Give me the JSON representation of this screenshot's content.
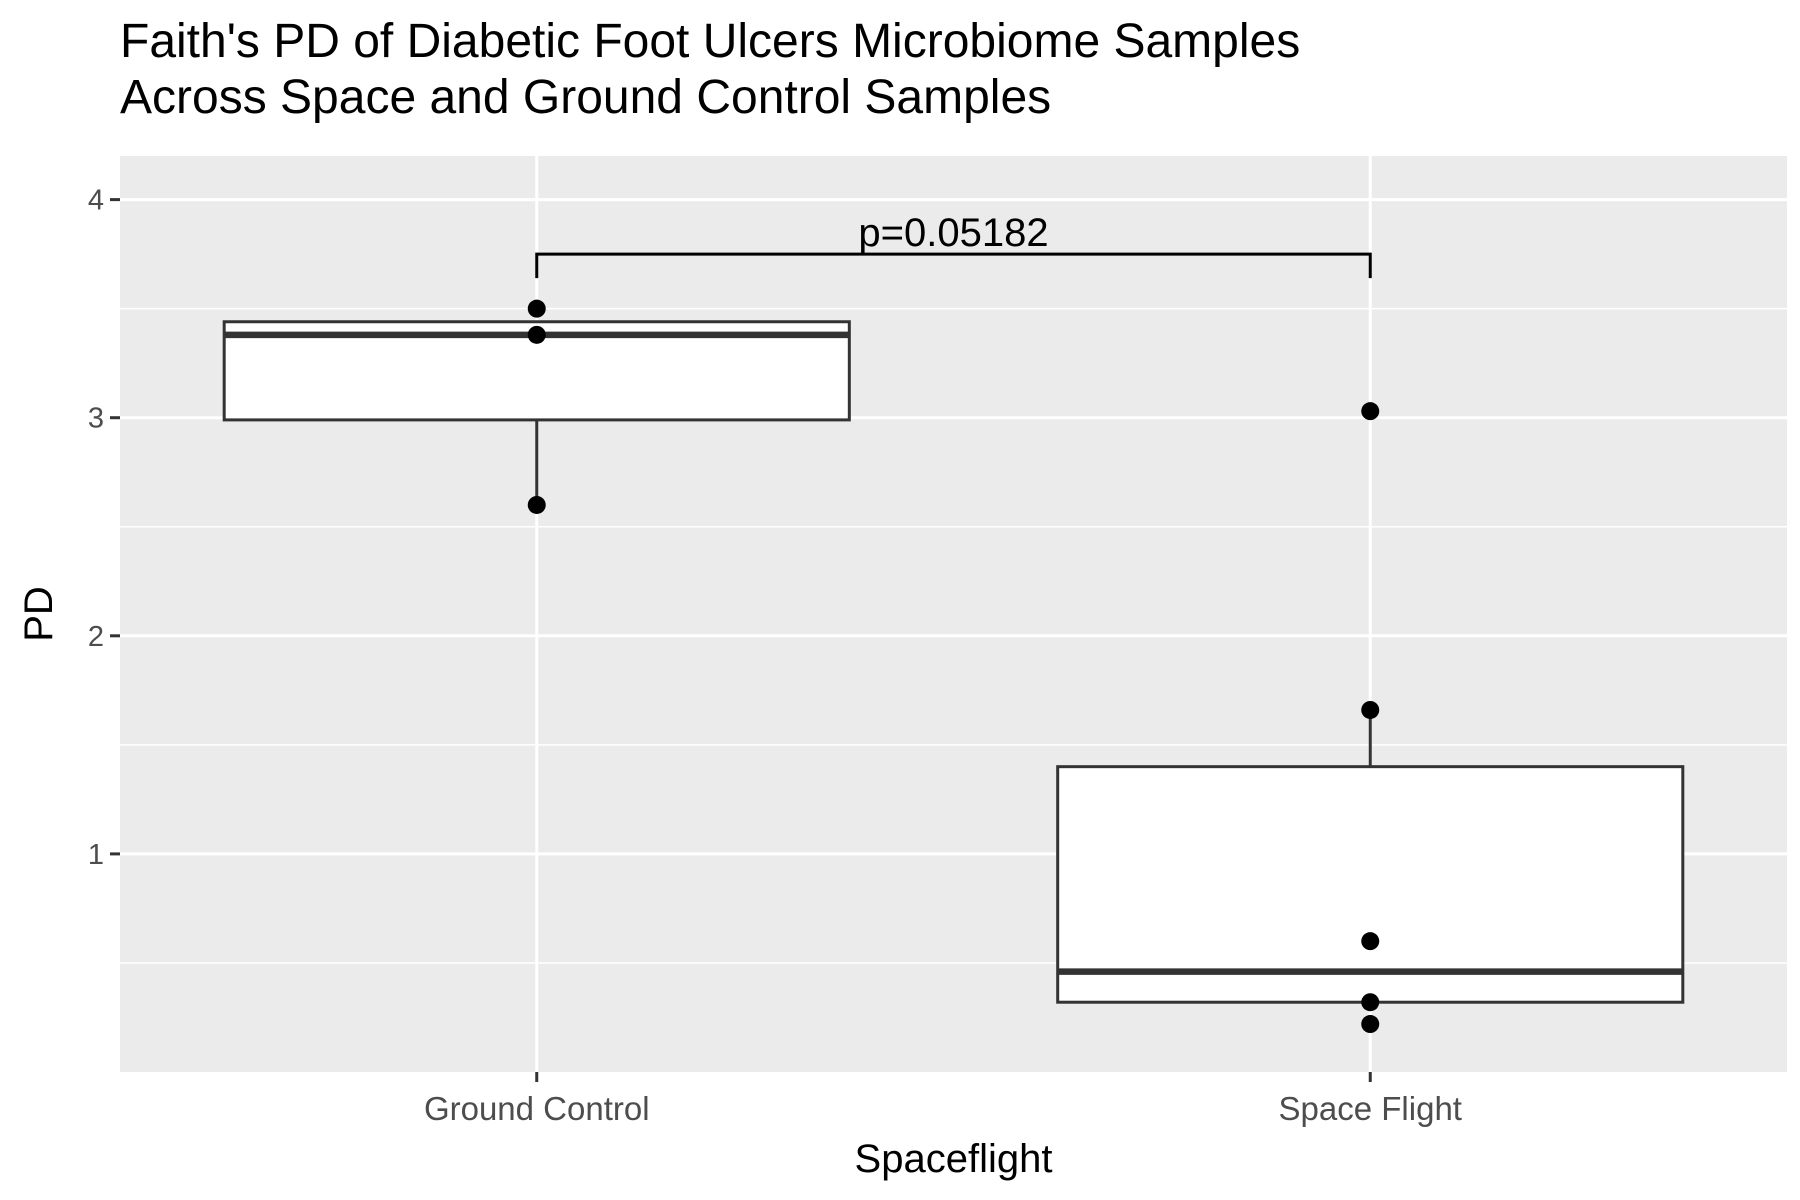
{
  "chart_data": {
    "type": "boxplot",
    "title": "Faith's PD of Diabetic Foot Ulcers Microbiome Samples",
    "subtitle": "Across Space and Ground Control Samples",
    "xlabel": "Spaceflight",
    "ylabel": "PD",
    "categories": [
      "Ground Control",
      "Space Flight"
    ],
    "ylim": [
      0.0,
      4.2
    ],
    "yticks": [
      1,
      2,
      3,
      4
    ],
    "ytick_labels": [
      "1",
      "2",
      "3",
      "4"
    ],
    "grid": true,
    "boxes": [
      {
        "name": "Ground Control",
        "whisker_low": 2.6,
        "q1": 2.99,
        "median": 3.38,
        "q3": 3.44,
        "whisker_high": 3.44
      },
      {
        "name": "Space Flight",
        "whisker_low": 0.32,
        "q1": 0.32,
        "median": 0.46,
        "q3": 1.4,
        "whisker_high": 1.66
      }
    ],
    "points": [
      {
        "category": "Ground Control",
        "values": [
          3.5,
          3.38,
          2.6
        ]
      },
      {
        "category": "Space Flight",
        "values": [
          3.03,
          1.66,
          0.6,
          0.32,
          0.22
        ]
      }
    ],
    "annotation": {
      "text": "p=0.05182",
      "from": "Ground Control",
      "to": "Space Flight",
      "y": 3.75
    }
  },
  "colors": {
    "panel": "#ebebeb",
    "grid": "#ffffff",
    "box_fill": "#ffffff",
    "box_stroke": "#333333",
    "point": "#000000"
  }
}
